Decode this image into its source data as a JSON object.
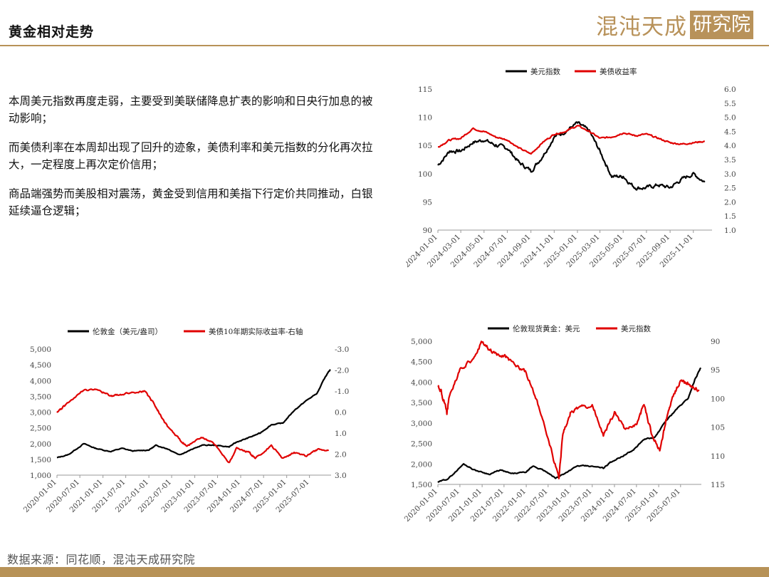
{
  "header": {
    "title": "黄金相对走势"
  },
  "logo": {
    "text": "混沌天成",
    "box": "研究院",
    "color": "#b8925a"
  },
  "body": {
    "paragraphs": [
      "本周美元指数再度走弱，主要受到美联储降息扩表的影响和日央行加息的被动影响；",
      "而美债利率在本周却出现了回升的迹象，美债利率和美元指数的分化再次拉大，一定程度上再次定价信用；",
      "商品端强势而美股相对震荡，黄金受到信用和美指下行定价共同推动，白银延续逼仓逻辑；"
    ]
  },
  "source": "数据来源：同花顺，混沌天成研究院",
  "colors": {
    "accent": "#b79257",
    "black": "#000000",
    "red": "#e00000"
  },
  "chart_data": [
    {
      "type": "line",
      "legend_position": "top",
      "x_tick_labels": [
        "2024-01-01",
        "2024-03-01",
        "2024-05-01",
        "2024-07-01",
        "2024-09-01",
        "2024-11-01",
        "2025-01-01",
        "2025-03-01",
        "2025-05-01",
        "2025-07-01",
        "2025-09-01",
        "2025-11-01"
      ],
      "y_left": {
        "lim": [
          90,
          115
        ],
        "ticks": [
          "90",
          "95",
          "100",
          "105",
          "110",
          "115"
        ]
      },
      "y_right": {
        "lim": [
          1.0,
          6.0
        ],
        "ticks": [
          "1.0",
          "1.5",
          "2.0",
          "2.5",
          "3.0",
          "3.5",
          "4.0",
          "4.5",
          "5.0",
          "5.5",
          "6.0"
        ]
      },
      "series": [
        {
          "name": "美元指数",
          "color": "#000000",
          "axis": "left",
          "x": [
            "2024-01-01",
            "2024-02-01",
            "2024-03-01",
            "2024-04-01",
            "2024-05-01",
            "2024-06-01",
            "2024-07-01",
            "2024-08-01",
            "2024-09-01",
            "2024-10-01",
            "2024-11-01",
            "2024-12-01",
            "2025-01-01",
            "2025-02-01",
            "2025-03-01",
            "2025-04-01",
            "2025-05-01",
            "2025-06-01",
            "2025-07-01",
            "2025-08-01",
            "2025-09-01",
            "2025-10-01",
            "2025-11-01",
            "2025-12-01"
          ],
          "values": [
            101.5,
            104.0,
            104.0,
            105.5,
            106.0,
            105.0,
            104.5,
            102.0,
            100.5,
            103.0,
            106.5,
            107.5,
            109.0,
            107.5,
            104.0,
            99.5,
            99.5,
            97.5,
            97.5,
            98.0,
            97.5,
            99.0,
            100.0,
            98.5
          ]
        },
        {
          "name": "美债收益率",
          "color": "#e00000",
          "axis": "right",
          "x": [
            "2024-01-01",
            "2024-02-01",
            "2024-03-01",
            "2024-04-01",
            "2024-05-01",
            "2024-06-01",
            "2024-07-01",
            "2024-08-01",
            "2024-09-01",
            "2024-10-01",
            "2024-11-01",
            "2024-12-01",
            "2025-01-01",
            "2025-02-01",
            "2025-03-01",
            "2025-04-01",
            "2025-05-01",
            "2025-06-01",
            "2025-07-01",
            "2025-08-01",
            "2025-09-01",
            "2025-10-01",
            "2025-11-01",
            "2025-12-01"
          ],
          "values": [
            3.95,
            4.2,
            4.25,
            4.6,
            4.5,
            4.3,
            4.2,
            3.9,
            3.7,
            4.1,
            4.4,
            4.5,
            4.7,
            4.5,
            4.25,
            4.3,
            4.45,
            4.35,
            4.4,
            4.25,
            4.1,
            4.05,
            4.1,
            4.15
          ]
        }
      ]
    },
    {
      "type": "line",
      "legend_position": "top",
      "x_tick_labels": [
        "2020-01-01",
        "2020-07-01",
        "2021-01-01",
        "2021-07-01",
        "2022-01-01",
        "2022-07-01",
        "2023-01-01",
        "2023-07-01",
        "2024-01-01",
        "2024-07-01",
        "2025-01-01",
        "2025-07-01"
      ],
      "y_left": {
        "lim": [
          1000,
          5000
        ],
        "ticks": [
          "1,000",
          "1,500",
          "2,000",
          "2,500",
          "3,000",
          "3,500",
          "4,000",
          "4,500",
          "5,000"
        ]
      },
      "y_right": {
        "lim": [
          -3.0,
          3.0
        ],
        "inverted": true,
        "ticks": [
          "-3.0",
          "-2.0",
          "-1.0",
          "0.0",
          "1.0",
          "2.0",
          "3.0"
        ]
      },
      "series": [
        {
          "name": "伦敦金（美元/盎司）",
          "color": "#000000",
          "axis": "left",
          "x": [
            "2020-01-01",
            "2020-04-01",
            "2020-08-01",
            "2020-11-01",
            "2021-03-01",
            "2021-06-01",
            "2021-09-01",
            "2022-01-01",
            "2022-03-01",
            "2022-06-01",
            "2022-09-01",
            "2022-11-01",
            "2023-03-01",
            "2023-06-01",
            "2023-10-01",
            "2023-12-01",
            "2024-03-01",
            "2024-06-01",
            "2024-09-01",
            "2024-12-01",
            "2025-03-01",
            "2025-06-01",
            "2025-09-01",
            "2025-11-01",
            "2025-12-15"
          ],
          "values": [
            1550,
            1650,
            2000,
            1850,
            1750,
            1850,
            1760,
            1800,
            1950,
            1830,
            1650,
            1750,
            1950,
            1950,
            1900,
            2050,
            2180,
            2330,
            2600,
            2650,
            3050,
            3350,
            3600,
            4100,
            4350
          ]
        },
        {
          "name": "美债10年期实际收益率-右轴",
          "color": "#e00000",
          "axis": "right",
          "x": [
            "2020-01-01",
            "2020-03-01",
            "2020-08-01",
            "2020-12-01",
            "2021-03-01",
            "2021-06-01",
            "2021-09-01",
            "2021-12-01",
            "2022-02-01",
            "2022-04-01",
            "2022-06-01",
            "2022-09-01",
            "2022-11-01",
            "2023-03-01",
            "2023-06-01",
            "2023-10-01",
            "2023-12-01",
            "2024-03-01",
            "2024-05-01",
            "2024-09-01",
            "2024-12-01",
            "2025-03-01",
            "2025-06-01",
            "2025-09-01",
            "2025-12-01"
          ],
          "values": [
            0.05,
            -0.3,
            -1.05,
            -1.05,
            -0.75,
            -0.85,
            -0.95,
            -1.0,
            -0.5,
            0.1,
            0.7,
            1.3,
            1.6,
            1.2,
            1.5,
            2.4,
            1.7,
            1.9,
            2.2,
            1.6,
            2.2,
            1.9,
            2.1,
            1.8,
            1.8
          ]
        }
      ]
    },
    {
      "type": "line",
      "legend_position": "top",
      "x_tick_labels": [
        "2020-01-01",
        "2020-07-01",
        "2021-01-01",
        "2021-07-01",
        "2022-01-01",
        "2022-07-01",
        "2023-01-01",
        "2023-07-01",
        "2024-01-01",
        "2024-07-01",
        "2025-01-01",
        "2025-07-01"
      ],
      "y_left": {
        "lim": [
          1500,
          5000
        ],
        "ticks": [
          "1,500",
          "2,000",
          "2,500",
          "3,000",
          "3,500",
          "4,000",
          "4,500",
          "5,000"
        ]
      },
      "y_right": {
        "lim": [
          90,
          115
        ],
        "inverted": true,
        "ticks": [
          "90",
          "95",
          "100",
          "105",
          "110",
          "115"
        ]
      },
      "series": [
        {
          "name": "伦敦现货黄金：美元",
          "color": "#000000",
          "axis": "left",
          "x": [
            "2020-01-01",
            "2020-04-01",
            "2020-08-01",
            "2020-11-01",
            "2021-03-01",
            "2021-06-01",
            "2021-09-01",
            "2022-01-01",
            "2022-03-01",
            "2022-06-01",
            "2022-09-01",
            "2022-11-01",
            "2023-03-01",
            "2023-06-01",
            "2023-10-01",
            "2023-12-01",
            "2024-03-01",
            "2024-06-01",
            "2024-09-01",
            "2024-12-01",
            "2025-03-01",
            "2025-06-01",
            "2025-09-01",
            "2025-11-01",
            "2025-12-15"
          ],
          "values": [
            1550,
            1650,
            2000,
            1850,
            1750,
            1850,
            1760,
            1800,
            1950,
            1830,
            1650,
            1750,
            1950,
            1950,
            1900,
            2050,
            2180,
            2330,
            2600,
            2650,
            3050,
            3350,
            3600,
            4100,
            4350
          ]
        },
        {
          "name": "美元指数",
          "color": "#e00000",
          "axis": "right",
          "x": [
            "2020-01-01",
            "2020-02-01",
            "2020-03-15",
            "2020-04-01",
            "2020-07-01",
            "2020-10-01",
            "2021-01-01",
            "2021-04-01",
            "2021-07-01",
            "2021-10-01",
            "2022-01-01",
            "2022-04-01",
            "2022-07-01",
            "2022-09-28",
            "2022-11-01",
            "2023-01-01",
            "2023-04-01",
            "2023-07-01",
            "2023-10-01",
            "2024-01-01",
            "2024-04-01",
            "2024-07-01",
            "2024-09-01",
            "2024-11-01",
            "2025-01-10",
            "2025-03-01",
            "2025-05-01",
            "2025-07-01",
            "2025-09-01",
            "2025-12-01"
          ],
          "values": [
            97.5,
            99.0,
            102.5,
            100.0,
            95.0,
            93.5,
            90.0,
            92.0,
            92.5,
            94.0,
            95.5,
            100.5,
            107.0,
            114.0,
            106.0,
            102.5,
            101.5,
            101.0,
            106.5,
            102.5,
            105.5,
            104.5,
            101.0,
            106.0,
            109.0,
            104.0,
            99.5,
            97.0,
            97.5,
            98.5
          ]
        }
      ]
    }
  ]
}
